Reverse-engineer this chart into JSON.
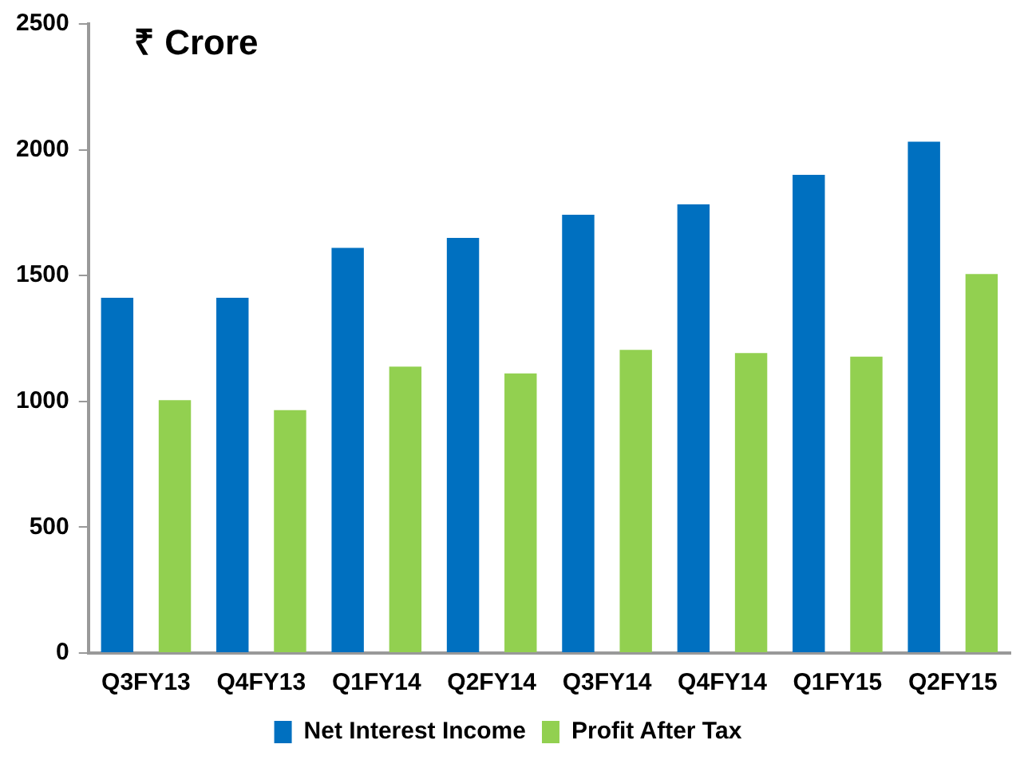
{
  "chart_data": {
    "type": "bar",
    "ylabel": "₹ Crore",
    "categories": [
      "Q3FY13",
      "Q4FY13",
      "Q1FY14",
      "Q2FY14",
      "Q3FY14",
      "Q4FY14",
      "Q1FY15",
      "Q2FY15"
    ],
    "series": [
      {
        "name": "Net Interest Income",
        "color": "#0070c0",
        "values": [
          1412,
          1412,
          1610,
          1650,
          1742,
          1783,
          1900,
          2032
        ]
      },
      {
        "name": "Profit After Tax",
        "color": "#92d050",
        "values": [
          1005,
          965,
          1138,
          1111,
          1205,
          1192,
          1178,
          1506
        ]
      }
    ],
    "ylim": [
      0,
      2500
    ],
    "yticks": [
      0,
      500,
      1000,
      1500,
      2000,
      2500
    ],
    "grid": false,
    "legend": "bottom"
  }
}
